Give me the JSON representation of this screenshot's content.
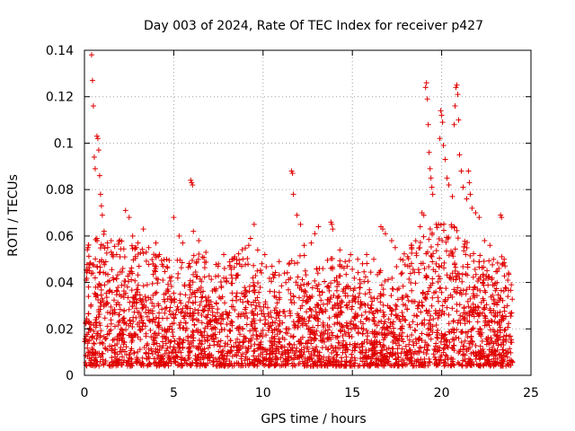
{
  "chart_data": {
    "type": "scatter",
    "title": "Day 003 of 2024, Rate Of TEC Index for receiver p427",
    "xlabel": "GPS time / hours",
    "ylabel": "ROTI / TECUs",
    "xlim": [
      0,
      25
    ],
    "ylim": [
      0,
      0.14
    ],
    "xticks": [
      0,
      5,
      10,
      15,
      20,
      25
    ],
    "xtick_labels": [
      "0",
      "5",
      "10",
      "15",
      "20",
      "25"
    ],
    "yticks": [
      0,
      0.02,
      0.04,
      0.06,
      0.08,
      0.1,
      0.12,
      0.14
    ],
    "ytick_labels": [
      "0",
      "0.02",
      "0.04",
      "0.06",
      "0.08",
      "0.1",
      "0.12",
      "0.14"
    ],
    "grid": true,
    "marker": "plus",
    "color": "#e00000",
    "series": [
      {
        "name": "ROTI",
        "points": [
          [
            0.1,
            0.041
          ],
          [
            0.2,
            0.055
          ],
          [
            0.3,
            0.048
          ],
          [
            0.4,
            0.138
          ],
          [
            0.45,
            0.127
          ],
          [
            0.5,
            0.116
          ],
          [
            0.55,
            0.094
          ],
          [
            0.6,
            0.089
          ],
          [
            0.7,
            0.103
          ],
          [
            0.75,
            0.102
          ],
          [
            0.8,
            0.097
          ],
          [
            0.85,
            0.086
          ],
          [
            0.9,
            0.078
          ],
          [
            0.95,
            0.073
          ],
          [
            1.0,
            0.069
          ],
          [
            1.1,
            0.062
          ],
          [
            1.3,
            0.055
          ],
          [
            1.5,
            0.058
          ],
          [
            1.8,
            0.052
          ],
          [
            2.3,
            0.071
          ],
          [
            2.5,
            0.068
          ],
          [
            2.7,
            0.06
          ],
          [
            3.0,
            0.057
          ],
          [
            3.3,
            0.063
          ],
          [
            3.6,
            0.055
          ],
          [
            4.0,
            0.057
          ],
          [
            4.2,
            0.052
          ],
          [
            4.6,
            0.05
          ],
          [
            5.0,
            0.068
          ],
          [
            5.3,
            0.06
          ],
          [
            5.5,
            0.057
          ],
          [
            5.95,
            0.084
          ],
          [
            6.0,
            0.083
          ],
          [
            6.05,
            0.082
          ],
          [
            6.1,
            0.062
          ],
          [
            6.4,
            0.058
          ],
          [
            6.8,
            0.053
          ],
          [
            7.5,
            0.048
          ],
          [
            7.8,
            0.052
          ],
          [
            8.3,
            0.05
          ],
          [
            8.8,
            0.047
          ],
          [
            9.2,
            0.056
          ],
          [
            9.3,
            0.059
          ],
          [
            9.5,
            0.065
          ],
          [
            9.7,
            0.054
          ],
          [
            10.1,
            0.052
          ],
          [
            10.5,
            0.047
          ],
          [
            10.9,
            0.049
          ],
          [
            11.2,
            0.044
          ],
          [
            11.6,
            0.088
          ],
          [
            11.65,
            0.087
          ],
          [
            11.7,
            0.078
          ],
          [
            11.9,
            0.069
          ],
          [
            12.1,
            0.065
          ],
          [
            12.3,
            0.056
          ],
          [
            12.7,
            0.057
          ],
          [
            12.9,
            0.061
          ],
          [
            13.1,
            0.064
          ],
          [
            13.8,
            0.066
          ],
          [
            13.85,
            0.065
          ],
          [
            13.9,
            0.063
          ],
          [
            14.3,
            0.054
          ],
          [
            14.6,
            0.049
          ],
          [
            14.9,
            0.052
          ],
          [
            15.3,
            0.05
          ],
          [
            15.8,
            0.052
          ],
          [
            16.2,
            0.05
          ],
          [
            16.6,
            0.064
          ],
          [
            16.7,
            0.063
          ],
          [
            16.85,
            0.061
          ],
          [
            17.2,
            0.058
          ],
          [
            17.4,
            0.055
          ],
          [
            17.7,
            0.05
          ],
          [
            18.3,
            0.056
          ],
          [
            18.8,
            0.064
          ],
          [
            18.9,
            0.07
          ],
          [
            19.0,
            0.069
          ],
          [
            19.1,
            0.124
          ],
          [
            19.15,
            0.126
          ],
          [
            19.2,
            0.119
          ],
          [
            19.25,
            0.108
          ],
          [
            19.3,
            0.096
          ],
          [
            19.35,
            0.089
          ],
          [
            19.4,
            0.085
          ],
          [
            19.45,
            0.081
          ],
          [
            19.5,
            0.078
          ],
          [
            19.7,
            0.065
          ],
          [
            19.9,
            0.102
          ],
          [
            19.95,
            0.114
          ],
          [
            20.0,
            0.112
          ],
          [
            20.05,
            0.109
          ],
          [
            20.1,
            0.099
          ],
          [
            20.2,
            0.093
          ],
          [
            20.3,
            0.085
          ],
          [
            20.4,
            0.082
          ],
          [
            20.6,
            0.077
          ],
          [
            20.7,
            0.108
          ],
          [
            20.75,
            0.116
          ],
          [
            20.8,
            0.124
          ],
          [
            20.85,
            0.125
          ],
          [
            20.9,
            0.121
          ],
          [
            20.95,
            0.11
          ],
          [
            21.0,
            0.095
          ],
          [
            21.1,
            0.088
          ],
          [
            21.2,
            0.081
          ],
          [
            21.4,
            0.076
          ],
          [
            21.5,
            0.088
          ],
          [
            21.55,
            0.083
          ],
          [
            21.6,
            0.078
          ],
          [
            21.7,
            0.072
          ],
          [
            21.9,
            0.07
          ],
          [
            22.1,
            0.068
          ],
          [
            22.4,
            0.058
          ],
          [
            22.7,
            0.056
          ],
          [
            22.9,
            0.05
          ],
          [
            23.2,
            0.046
          ],
          [
            23.3,
            0.069
          ],
          [
            23.35,
            0.068
          ],
          [
            23.5,
            0.05
          ],
          [
            23.7,
            0.041
          ],
          [
            23.9,
            0.039
          ]
        ],
        "envelope": {
          "description": "dense band of lower ROTI values, upper bound by hour",
          "hours": [
            0,
            1,
            2,
            3,
            4,
            5,
            6,
            7,
            8,
            9,
            10,
            11,
            12,
            13,
            14,
            15,
            16,
            17,
            18,
            19,
            20,
            21,
            22,
            23,
            24
          ],
          "upper": [
            0.04,
            0.045,
            0.043,
            0.04,
            0.036,
            0.034,
            0.038,
            0.034,
            0.032,
            0.04,
            0.032,
            0.028,
            0.04,
            0.03,
            0.036,
            0.034,
            0.034,
            0.026,
            0.038,
            0.046,
            0.05,
            0.048,
            0.036,
            0.035,
            0.036
          ],
          "lower": [
            0.004,
            0.004,
            0.004,
            0.004,
            0.004,
            0.004,
            0.004,
            0.004,
            0.004,
            0.004,
            0.004,
            0.004,
            0.004,
            0.004,
            0.004,
            0.004,
            0.004,
            0.004,
            0.004,
            0.004,
            0.004,
            0.004,
            0.004,
            0.004,
            0.004
          ]
        }
      }
    ]
  }
}
